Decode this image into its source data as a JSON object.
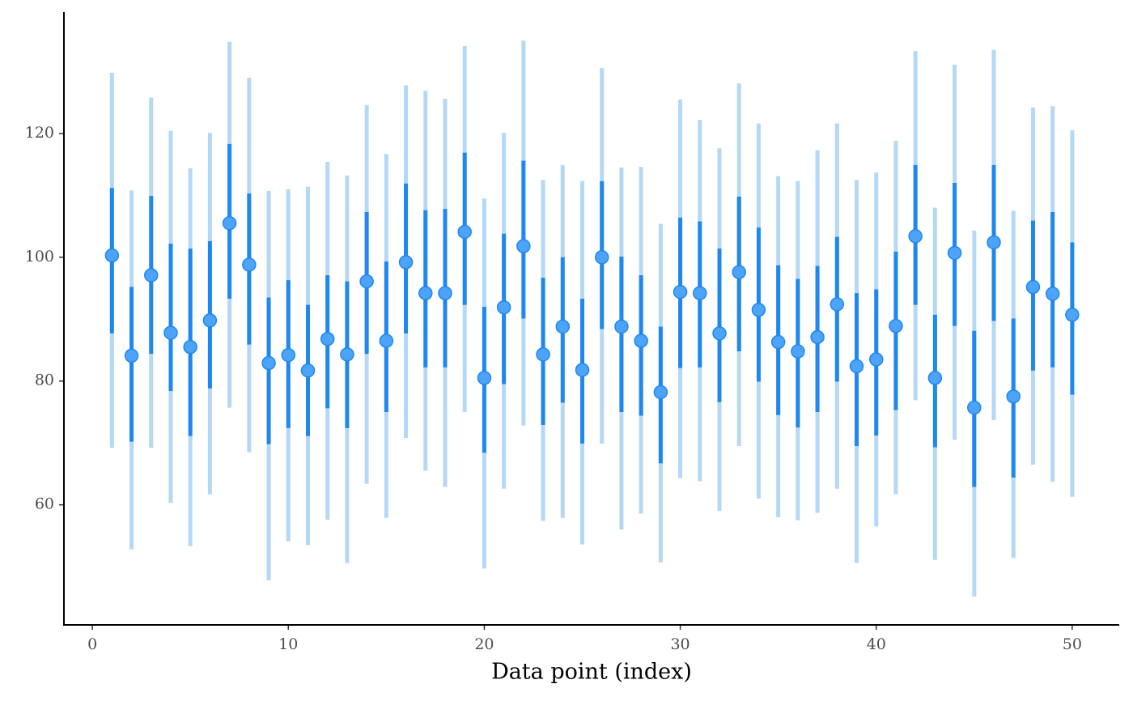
{
  "chart_data": {
    "type": "pointrange",
    "x_label": "Data point (index)",
    "x": [
      1,
      2,
      3,
      4,
      5,
      6,
      7,
      8,
      9,
      10,
      11,
      12,
      13,
      14,
      15,
      16,
      17,
      18,
      19,
      20,
      21,
      22,
      23,
      24,
      25,
      26,
      27,
      28,
      29,
      30,
      31,
      32,
      33,
      34,
      35,
      36,
      37,
      38,
      39,
      40,
      41,
      42,
      43,
      44,
      45,
      46,
      47,
      48,
      49,
      50
    ],
    "values": [
      100.3,
      84.1,
      97.1,
      87.8,
      85.5,
      89.8,
      105.5,
      98.8,
      82.9,
      84.2,
      81.7,
      86.8,
      84.3,
      96.1,
      86.5,
      99.2,
      94.2,
      94.2,
      104.1,
      80.5,
      91.9,
      101.8,
      84.3,
      88.8,
      81.8,
      100.0,
      88.8,
      86.5,
      78.2,
      94.4,
      94.2,
      87.7,
      97.6,
      91.5,
      86.3,
      84.8,
      87.1,
      92.4,
      82.4,
      83.5,
      88.9,
      103.4,
      80.5,
      100.7,
      75.7,
      102.4,
      77.5,
      95.2,
      94.1,
      90.7
    ],
    "inner_low": [
      87.7,
      70.2,
      84.4,
      78.4,
      71.1,
      78.8,
      93.3,
      85.9,
      69.8,
      72.4,
      71.1,
      75.6,
      72.4,
      84.4,
      75.0,
      87.7,
      82.2,
      82.2,
      92.3,
      68.4,
      79.5,
      90.1,
      72.9,
      76.5,
      69.9,
      88.4,
      75.0,
      74.4,
      66.7,
      82.1,
      82.2,
      76.6,
      84.8,
      79.9,
      74.5,
      72.5,
      75.0,
      79.9,
      69.5,
      71.2,
      75.3,
      92.3,
      69.3,
      88.9,
      62.9,
      89.7,
      64.4,
      81.7,
      82.2,
      77.8
    ],
    "inner_high": [
      111.2,
      95.2,
      109.9,
      102.2,
      101.4,
      102.6,
      118.3,
      110.3,
      93.5,
      96.3,
      92.3,
      97.1,
      96.1,
      107.3,
      99.3,
      111.9,
      107.6,
      107.8,
      116.9,
      92.0,
      103.8,
      115.6,
      96.7,
      100.0,
      93.3,
      112.3,
      100.1,
      97.1,
      88.8,
      106.4,
      105.8,
      101.4,
      109.8,
      104.8,
      98.7,
      96.5,
      98.6,
      103.3,
      94.2,
      94.8,
      100.9,
      114.9,
      90.7,
      112.0,
      88.1,
      114.9,
      90.1,
      105.9,
      107.3,
      102.4
    ],
    "outer_low": [
      69.2,
      52.8,
      69.2,
      60.3,
      53.3,
      61.7,
      75.7,
      68.5,
      47.8,
      54.1,
      53.5,
      57.6,
      50.6,
      63.4,
      57.9,
      70.8,
      65.5,
      62.9,
      75.0,
      49.7,
      62.6,
      72.8,
      57.4,
      57.9,
      53.6,
      69.9,
      56.0,
      58.6,
      50.7,
      64.3,
      63.8,
      59.0,
      69.5,
      61.0,
      58.0,
      57.5,
      58.7,
      62.6,
      50.6,
      56.5,
      61.7,
      76.9,
      51.1,
      70.5,
      45.2,
      73.7,
      51.4,
      66.5,
      63.7,
      61.3
    ],
    "outer_high": [
      129.8,
      110.8,
      125.8,
      120.4,
      114.4,
      120.1,
      134.8,
      129.0,
      110.7,
      111.0,
      111.4,
      115.4,
      113.2,
      124.6,
      116.7,
      127.8,
      126.9,
      125.6,
      134.1,
      109.5,
      120.1,
      135.0,
      112.5,
      114.9,
      112.3,
      130.6,
      114.5,
      114.6,
      105.4,
      125.5,
      122.2,
      117.6,
      128.1,
      121.6,
      113.1,
      112.3,
      117.3,
      121.6,
      112.5,
      113.7,
      118.8,
      133.3,
      108.0,
      131.1,
      104.3,
      133.5,
      107.5,
      124.2,
      124.4,
      120.5
    ],
    "point_color": "#4da3f7",
    "inner_color": "#1e88f0",
    "outer_color": "#b5d8f6",
    "xlim": [
      -1.45,
      52.4
    ],
    "ylim": [
      40.6,
      139.6
    ],
    "xticks": [
      0,
      10,
      20,
      30,
      40,
      50
    ],
    "yticks": [
      60,
      80,
      100,
      120
    ],
    "grid": false
  }
}
